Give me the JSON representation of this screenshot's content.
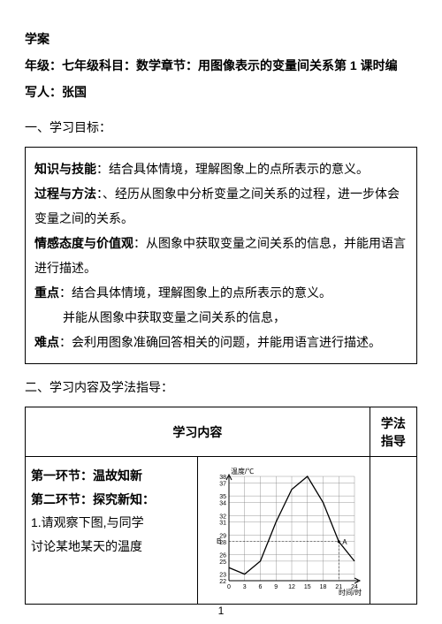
{
  "header": {
    "line1": "学案",
    "line2": "年级：七年级科目：数学章节：用图像表示的变量间关系第 1 课时编",
    "line3": "写人：张国"
  },
  "section1_title": "一、学习目标：",
  "objectives": {
    "knowledge_label": "知识与技能",
    "knowledge_text": "：结合具体情境，理解图象上的点所表示的意义。",
    "process_label": "过程与方法",
    "process_text": "：、经历从图象中分析变量之间关系的过程，进一步体会变量之间的关系。",
    "emotion_label": "情感态度与价值观",
    "emotion_text": "：从图象中获取变量之间关系的信息，并能用语言进行描述。",
    "key_label": "重点",
    "key_text": "：结合具体情境，理解图象上的点所表示的意义。",
    "key_text2": "并能从图象中获取变量之间关系的信息，",
    "diff_label": "难点",
    "diff_text": "：会利用图象准确回答相关的问题，并能用语言进行描述。"
  },
  "section2_title": "二、学习内容及学法指导：",
  "table": {
    "th_left": "学习内容",
    "th_right": "学法指导",
    "row1_label1": "第一环节：温故知新",
    "row1_label2": "第二环节：探究新知：",
    "row1_text1": "1.请观察下图,与同学",
    "row1_text2": "讨论某地某天的温度"
  },
  "chart": {
    "y_label": "温度/℃",
    "x_label": "时间/时",
    "y_ticks": [
      22,
      23,
      25,
      26,
      28,
      29,
      31,
      32,
      34,
      35,
      37,
      38
    ],
    "x_ticks": [
      0,
      3,
      6,
      9,
      12,
      15,
      18,
      21,
      24
    ],
    "curve_points": [
      [
        0,
        24
      ],
      [
        3,
        23
      ],
      [
        6,
        25
      ],
      [
        9,
        31
      ],
      [
        12,
        36
      ],
      [
        15,
        38
      ],
      [
        18,
        34
      ],
      [
        21,
        28
      ],
      [
        24,
        25
      ]
    ],
    "point_a_label": "A",
    "point_b_label": "B",
    "axis_color": "#000000",
    "grid_color": "#808080",
    "curve_color": "#000000",
    "background": "#ffffff",
    "y_min": 22,
    "y_max": 38,
    "x_min": 0,
    "x_max": 24
  },
  "page_number": "1"
}
